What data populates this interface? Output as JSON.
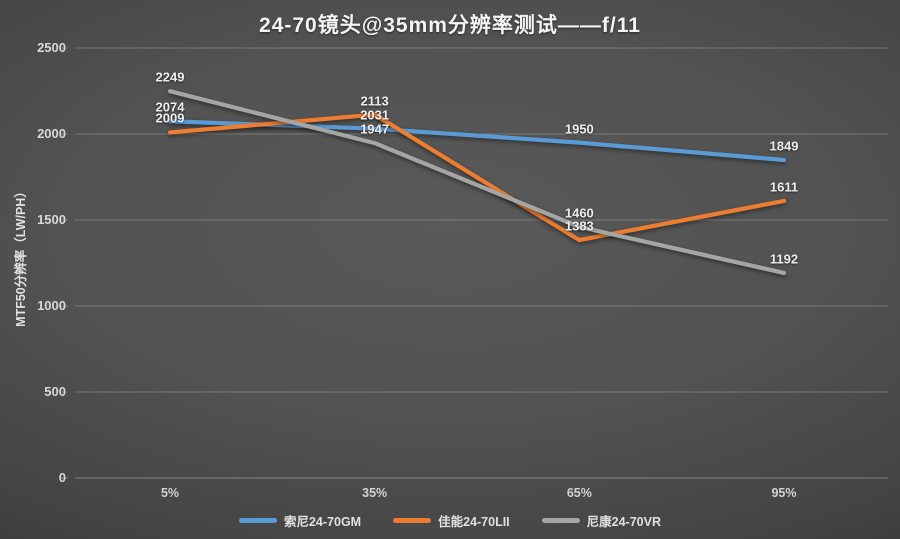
{
  "title": "24-70镜头@35mm分辨率测试——f/11",
  "chart_data": {
    "type": "line",
    "title": "24-70镜头@35mm分辨率测试——f/11",
    "categories": [
      "5%",
      "35%",
      "65%",
      "95%"
    ],
    "series": [
      {
        "name": "索尼24-70GM",
        "color": "#5B9BD5",
        "values": [
          2074,
          2031,
          1950,
          1849
        ]
      },
      {
        "name": "佳能24-70LII",
        "color": "#ED7D31",
        "values": [
          2009,
          2113,
          1383,
          1611
        ]
      },
      {
        "name": "尼康24-70VR",
        "color": "#A5A5A5",
        "values": [
          2249,
          1947,
          1460,
          1192
        ]
      }
    ],
    "xlabel": "",
    "ylabel": "MTF50分辨率（LW/PH）",
    "ylim": [
      0,
      2500
    ],
    "yticks": [
      0,
      500,
      1000,
      1500,
      2000,
      2500
    ],
    "grid": true,
    "data_labels": true,
    "legend_position": "bottom",
    "colors": {
      "background_center": "#595959",
      "background_edge": "#282828",
      "gridline": "rgba(255,255,255,0.22)",
      "axis_line": "rgba(255,255,255,0.32)",
      "text": "#ededed"
    }
  }
}
